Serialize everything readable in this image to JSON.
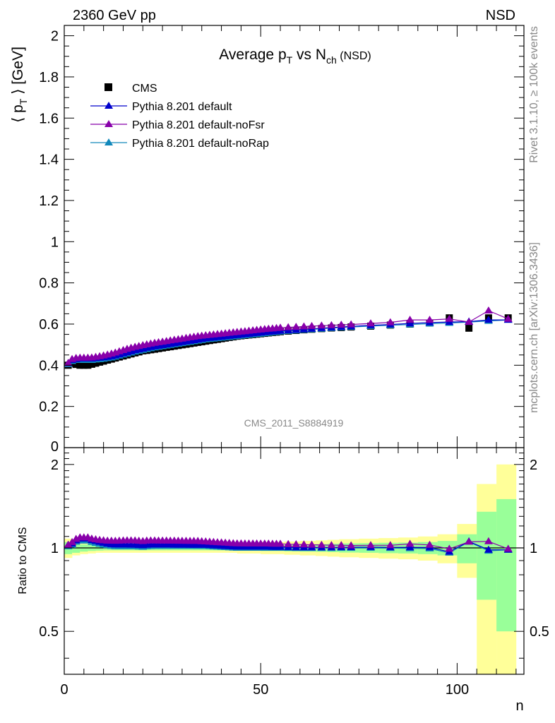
{
  "header": {
    "left": "2360 GeV pp",
    "right": "NSD"
  },
  "side": {
    "rivet": "Rivet 3.1.10, ≥ 100k events",
    "mcplots": "mcplots.cern.ch [arXiv:1306.3436]"
  },
  "analysis_id": "CMS_2011_S8884919",
  "colors": {
    "cms": "#000000",
    "default": "#0000cc",
    "noFsr": "#8800aa",
    "noRap": "#1188bb",
    "band_yellow": "#ffff99",
    "band_green": "#99ff99"
  },
  "chart_data": [
    {
      "type": "scatter",
      "title_parts": {
        "main": "Average p",
        "sub1": "T",
        "mid": " vs N",
        "sub2": "ch",
        "suffix": " (NSD)"
      },
      "ylabel_parts": {
        "open": "⟨ p",
        "sub": "T",
        "close": " ⟩ [GeV]"
      },
      "xlim": [
        0,
        117
      ],
      "ylim": [
        0,
        2.05
      ],
      "yticks": [
        0.2,
        0.4,
        0.6,
        0.8,
        1,
        1.2,
        1.4,
        1.6,
        1.8,
        2
      ],
      "ytick_labels": [
        "0.2",
        "0.4",
        "0.6",
        "0.8",
        "1",
        "1.2",
        "1.4",
        "1.6",
        "1.8",
        "2"
      ],
      "y_partial_label": "0",
      "legend": {
        "placement": "top-left",
        "entries": [
          "CMS",
          "Pythia 8.201 default",
          "Pythia 8.201 default-noFsr",
          "Pythia 8.201 default-noRap"
        ]
      },
      "series": [
        {
          "name": "CMS",
          "x": [
            1,
            2,
            3,
            4,
            5,
            6,
            7,
            8,
            9,
            10,
            11,
            12,
            13,
            14,
            15,
            16,
            17,
            18,
            19,
            20,
            21,
            22,
            23,
            24,
            25,
            26,
            27,
            28,
            29,
            30,
            31,
            32,
            33,
            34,
            35,
            36,
            37,
            38,
            39,
            40,
            41,
            42,
            43,
            44,
            45,
            46,
            47,
            48,
            49,
            50,
            51,
            52,
            53,
            54,
            55,
            57,
            59,
            61,
            63,
            65.5,
            68,
            70.5,
            73,
            78,
            83,
            88,
            93,
            98,
            103,
            108,
            113
          ],
          "y": [
            0.4,
            0.41,
            0.404,
            0.4,
            0.4,
            0.4,
            0.405,
            0.41,
            0.415,
            0.42,
            0.425,
            0.43,
            0.435,
            0.44,
            0.445,
            0.45,
            0.455,
            0.46,
            0.465,
            0.47,
            0.472,
            0.475,
            0.478,
            0.481,
            0.484,
            0.487,
            0.49,
            0.493,
            0.496,
            0.499,
            0.502,
            0.505,
            0.508,
            0.511,
            0.514,
            0.517,
            0.52,
            0.523,
            0.526,
            0.529,
            0.532,
            0.535,
            0.538,
            0.541,
            0.543,
            0.545,
            0.547,
            0.549,
            0.551,
            0.553,
            0.555,
            0.557,
            0.559,
            0.561,
            0.563,
            0.566,
            0.569,
            0.572,
            0.575,
            0.578,
            0.581,
            0.583,
            0.586,
            0.59,
            0.595,
            0.6,
            0.605,
            0.63,
            0.58,
            0.63,
            0.63
          ]
        },
        {
          "name": "Pythia 8.201 default",
          "x": [
            1,
            2,
            3,
            4,
            5,
            6,
            7,
            8,
            9,
            10,
            11,
            12,
            13,
            14,
            15,
            16,
            17,
            18,
            19,
            20,
            21,
            22,
            23,
            24,
            25,
            26,
            27,
            28,
            29,
            30,
            31,
            32,
            33,
            34,
            35,
            36,
            37,
            38,
            39,
            40,
            41,
            42,
            43,
            44,
            45,
            46,
            47,
            48,
            49,
            50,
            51,
            52,
            53,
            54,
            55,
            57,
            59,
            61,
            63,
            65.5,
            68,
            70.5,
            73,
            78,
            83,
            88,
            93,
            98,
            103,
            108,
            113
          ],
          "y": [
            0.41,
            0.425,
            0.43,
            0.432,
            0.432,
            0.432,
            0.432,
            0.434,
            0.436,
            0.438,
            0.44,
            0.443,
            0.447,
            0.452,
            0.457,
            0.462,
            0.467,
            0.472,
            0.476,
            0.48,
            0.484,
            0.488,
            0.491,
            0.494,
            0.497,
            0.5,
            0.503,
            0.506,
            0.509,
            0.512,
            0.515,
            0.518,
            0.521,
            0.524,
            0.527,
            0.53,
            0.532,
            0.534,
            0.536,
            0.538,
            0.54,
            0.542,
            0.544,
            0.546,
            0.548,
            0.55,
            0.552,
            0.554,
            0.556,
            0.558,
            0.56,
            0.562,
            0.563,
            0.565,
            0.567,
            0.569,
            0.571,
            0.574,
            0.577,
            0.58,
            0.583,
            0.586,
            0.589,
            0.594,
            0.598,
            0.603,
            0.607,
            0.61,
            0.612,
            0.62,
            0.62
          ]
        },
        {
          "name": "Pythia 8.201 default-noFsr",
          "x": [
            1,
            2,
            3,
            4,
            5,
            6,
            7,
            8,
            9,
            10,
            11,
            12,
            13,
            14,
            15,
            16,
            17,
            18,
            19,
            20,
            21,
            22,
            23,
            24,
            25,
            26,
            27,
            28,
            29,
            30,
            31,
            32,
            33,
            34,
            35,
            36,
            37,
            38,
            39,
            40,
            41,
            42,
            43,
            44,
            45,
            46,
            47,
            48,
            49,
            50,
            51,
            52,
            53,
            54,
            55,
            57,
            59,
            61,
            63,
            65.5,
            68,
            70.5,
            73,
            78,
            83,
            88,
            93,
            98,
            103,
            108,
            113
          ],
          "y": [
            0.41,
            0.43,
            0.435,
            0.436,
            0.436,
            0.436,
            0.437,
            0.44,
            0.443,
            0.447,
            0.451,
            0.456,
            0.461,
            0.467,
            0.473,
            0.479,
            0.484,
            0.489,
            0.493,
            0.497,
            0.501,
            0.505,
            0.508,
            0.511,
            0.514,
            0.517,
            0.52,
            0.523,
            0.526,
            0.529,
            0.532,
            0.535,
            0.538,
            0.541,
            0.543,
            0.545,
            0.547,
            0.549,
            0.551,
            0.553,
            0.555,
            0.557,
            0.559,
            0.561,
            0.563,
            0.565,
            0.567,
            0.569,
            0.571,
            0.573,
            0.575,
            0.577,
            0.578,
            0.58,
            0.582,
            0.584,
            0.586,
            0.588,
            0.59,
            0.592,
            0.594,
            0.596,
            0.598,
            0.603,
            0.608,
            0.62,
            0.62,
            0.625,
            0.61,
            0.665,
            0.625
          ]
        },
        {
          "name": "Pythia 8.201 default-noRap",
          "x": [
            1,
            2,
            3,
            4,
            5,
            6,
            7,
            8,
            9,
            10,
            11,
            12,
            13,
            14,
            15,
            16,
            17,
            18,
            19,
            20,
            21,
            22,
            23,
            24,
            25,
            26,
            27,
            28,
            29,
            30,
            31,
            32,
            33,
            34,
            35,
            36,
            37,
            38,
            39,
            40,
            41,
            42,
            43,
            44,
            45,
            46,
            47,
            48,
            49,
            50,
            51,
            52,
            53,
            54,
            55,
            57,
            59,
            61,
            63,
            65.5,
            68,
            70.5,
            73,
            78,
            83,
            88,
            93,
            98,
            103,
            108,
            113
          ],
          "y": [
            0.405,
            0.42,
            0.425,
            0.425,
            0.425,
            0.425,
            0.425,
            0.427,
            0.429,
            0.431,
            0.434,
            0.437,
            0.441,
            0.446,
            0.451,
            0.456,
            0.461,
            0.466,
            0.47,
            0.474,
            0.478,
            0.482,
            0.486,
            0.489,
            0.492,
            0.495,
            0.498,
            0.501,
            0.504,
            0.507,
            0.51,
            0.513,
            0.516,
            0.519,
            0.522,
            0.525,
            0.527,
            0.529,
            0.531,
            0.533,
            0.535,
            0.537,
            0.539,
            0.541,
            0.543,
            0.545,
            0.547,
            0.549,
            0.551,
            0.553,
            0.555,
            0.557,
            0.559,
            0.561,
            0.563,
            0.566,
            0.568,
            0.571,
            0.574,
            0.577,
            0.58,
            0.583,
            0.586,
            0.59,
            0.594,
            0.598,
            0.602,
            0.605,
            0.61,
            0.615,
            0.62
          ]
        }
      ]
    },
    {
      "type": "scatter",
      "ylabel": "Ratio to CMS",
      "xlabel": "n",
      "xlim": [
        0,
        117
      ],
      "ylim": [
        0.35,
        2.3
      ],
      "log_y": true,
      "yticks": [
        0.5,
        1,
        2
      ],
      "ytick_labels": [
        "0.5",
        "1",
        "2"
      ],
      "xticks": [
        0,
        50,
        100
      ],
      "xtick_labels": [
        "0",
        "50",
        "100"
      ],
      "reference_line": 1,
      "band_bins_x": [
        0,
        2,
        4,
        6,
        8,
        10,
        12,
        14,
        16,
        18,
        20,
        22,
        24,
        26,
        28,
        30,
        32,
        34,
        36,
        38,
        40,
        42,
        44,
        46,
        48,
        50,
        52,
        54,
        56,
        58,
        60,
        62,
        64,
        67,
        70,
        75,
        80,
        85,
        90,
        95,
        100,
        105,
        110,
        115
      ],
      "band_yellow_halfwidth": [
        0.08,
        0.06,
        0.05,
        0.045,
        0.04,
        0.04,
        0.04,
        0.04,
        0.04,
        0.04,
        0.04,
        0.04,
        0.04,
        0.04,
        0.04,
        0.04,
        0.04,
        0.04,
        0.04,
        0.04,
        0.04,
        0.04,
        0.045,
        0.045,
        0.045,
        0.05,
        0.05,
        0.05,
        0.055,
        0.055,
        0.06,
        0.06,
        0.065,
        0.07,
        0.075,
        0.08,
        0.085,
        0.09,
        0.1,
        0.12,
        0.22,
        0.7,
        1.0
      ],
      "band_green_halfwidth": [
        0.05,
        0.04,
        0.03,
        0.025,
        0.022,
        0.02,
        0.02,
        0.02,
        0.02,
        0.02,
        0.02,
        0.02,
        0.02,
        0.02,
        0.02,
        0.02,
        0.02,
        0.02,
        0.02,
        0.02,
        0.02,
        0.02,
        0.022,
        0.022,
        0.022,
        0.025,
        0.025,
        0.025,
        0.028,
        0.028,
        0.03,
        0.03,
        0.032,
        0.035,
        0.038,
        0.04,
        0.043,
        0.045,
        0.05,
        0.06,
        0.12,
        0.35,
        0.5
      ]
    }
  ]
}
